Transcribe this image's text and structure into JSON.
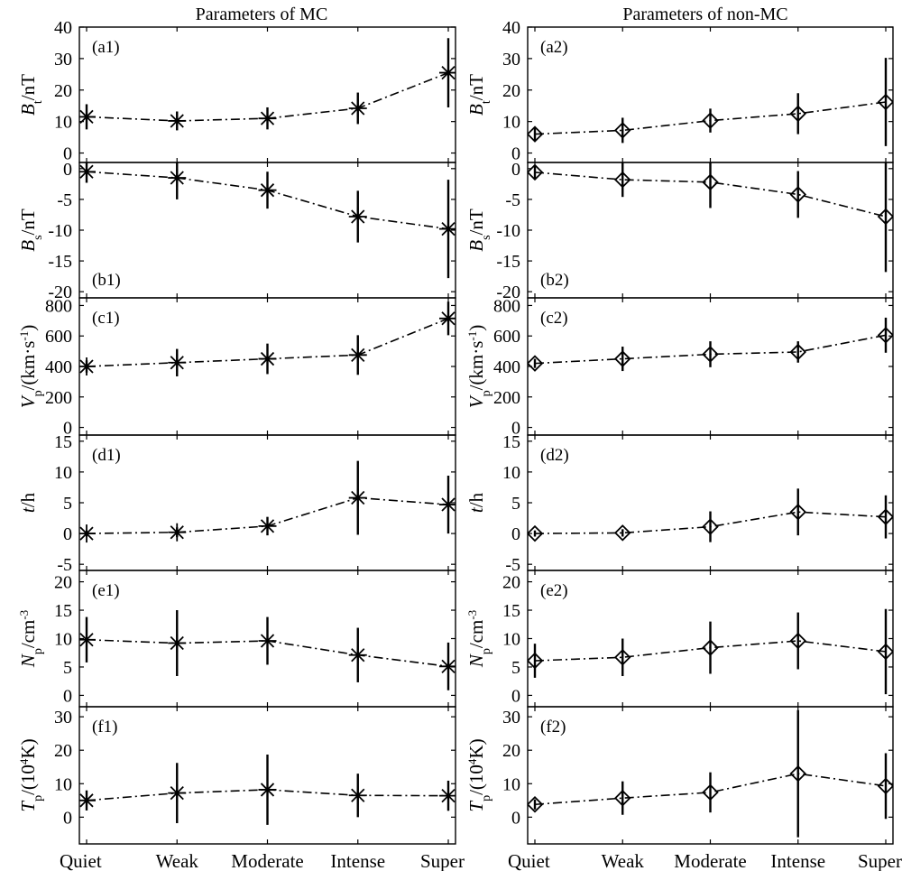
{
  "chart_data": {
    "type": "line",
    "categories": [
      "Quiet",
      "Weak",
      "Moderate",
      "Intense",
      "Super"
    ],
    "columns": [
      {
        "key": "mc",
        "title": "Parameters of MC",
        "marker": "asterisk"
      },
      {
        "key": "nonmc",
        "title": "Parameters of non-MC",
        "marker": "diamond"
      }
    ],
    "rows": [
      {
        "key": "bt",
        "ylabel": {
          "main": "B",
          "sub": "t",
          "rest": "/nT"
        },
        "ylim": [
          -3,
          40
        ],
        "ticks": [
          0,
          10,
          20,
          30,
          40
        ]
      },
      {
        "key": "bs",
        "ylabel": {
          "main": "B",
          "sub": "s",
          "rest": "/nT"
        },
        "ylim": [
          -21,
          1
        ],
        "ticks": [
          0,
          -5,
          -10,
          -15,
          -20
        ]
      },
      {
        "key": "vp",
        "ylabel": {
          "main": "V",
          "sub": "p",
          "rest": "/(km·s",
          "sup": "-1",
          "tail": ")"
        },
        "ylim": [
          -50,
          850
        ],
        "ticks": [
          0,
          200,
          400,
          600,
          800
        ]
      },
      {
        "key": "t",
        "ylabel": {
          "main": "t",
          "rest": "/h"
        },
        "ylim": [
          -6,
          16
        ],
        "ticks": [
          -5,
          0,
          5,
          10,
          15
        ]
      },
      {
        "key": "np",
        "ylabel": {
          "main": "N",
          "sub": "p",
          "rest": "/cm",
          "sup": "-3"
        },
        "ylim": [
          -2,
          22
        ],
        "ticks": [
          0,
          5,
          10,
          15,
          20
        ]
      },
      {
        "key": "tp",
        "ylabel": {
          "main": "T",
          "sub": "p",
          "rest": "/(10",
          "sup": "4",
          "tail": "K)"
        },
        "ylim": [
          -8,
          33
        ],
        "ticks": [
          0,
          10,
          20,
          30
        ]
      }
    ],
    "panels": {
      "mc": {
        "bt": {
          "label": "(a1)",
          "label_pos": "top",
          "values": [
            11.5,
            10.2,
            11.0,
            14.2,
            25.5
          ],
          "errors": [
            4.0,
            3.0,
            3.5,
            5.0,
            11.0
          ]
        },
        "bs": {
          "label": "(b1)",
          "label_pos": "bottom",
          "values": [
            -0.5,
            -1.5,
            -3.5,
            -7.8,
            -9.8
          ],
          "errors": [
            1.8,
            3.5,
            3.0,
            4.2,
            8.0
          ]
        },
        "vp": {
          "label": "(c1)",
          "label_pos": "top",
          "values": [
            400,
            425,
            450,
            475,
            715
          ],
          "errors": [
            40,
            90,
            100,
            130,
            110
          ]
        },
        "t": {
          "label": "(d1)",
          "label_pos": "top",
          "values": [
            0.0,
            0.2,
            1.2,
            5.8,
            4.7
          ],
          "errors": [
            0.5,
            0.8,
            1.5,
            6.0,
            4.7
          ]
        },
        "np": {
          "label": "(e1)",
          "label_pos": "top",
          "values": [
            9.8,
            9.2,
            9.6,
            7.1,
            5.1
          ],
          "errors": [
            4.0,
            5.8,
            4.2,
            4.8,
            4.2
          ]
        },
        "tp": {
          "label": "(f1)",
          "label_pos": "top",
          "values": [
            5.0,
            7.2,
            8.2,
            6.5,
            6.4
          ],
          "errors": [
            3.0,
            9.0,
            10.5,
            6.5,
            4.5
          ]
        }
      },
      "nonmc": {
        "bt": {
          "label": "(a2)",
          "label_pos": "top",
          "values": [
            6.0,
            7.2,
            10.3,
            12.5,
            16.2
          ],
          "errors": [
            2.0,
            4.0,
            3.8,
            6.5,
            14.0
          ]
        },
        "bs": {
          "label": "(b2)",
          "label_pos": "bottom",
          "values": [
            -0.6,
            -1.8,
            -2.2,
            -4.2,
            -7.8
          ],
          "errors": [
            1.2,
            2.8,
            4.2,
            3.8,
            9.0
          ]
        },
        "vp": {
          "label": "(c2)",
          "label_pos": "top",
          "values": [
            420,
            450,
            480,
            495,
            605
          ],
          "errors": [
            30,
            80,
            85,
            70,
            115
          ]
        },
        "t": {
          "label": "(d2)",
          "label_pos": "top",
          "values": [
            0.0,
            0.1,
            1.1,
            3.5,
            2.7
          ],
          "errors": [
            0.5,
            0.6,
            2.5,
            3.8,
            3.5
          ]
        },
        "np": {
          "label": "(e2)",
          "label_pos": "top",
          "values": [
            6.1,
            6.7,
            8.4,
            9.6,
            7.7
          ],
          "errors": [
            3.0,
            3.3,
            4.6,
            5.0,
            7.5
          ]
        },
        "tp": {
          "label": "(f2)",
          "label_pos": "top",
          "values": [
            3.8,
            5.7,
            7.4,
            13.0,
            9.3
          ],
          "errors": [
            1.5,
            5.0,
            6.0,
            19.0,
            9.8
          ]
        }
      }
    }
  }
}
